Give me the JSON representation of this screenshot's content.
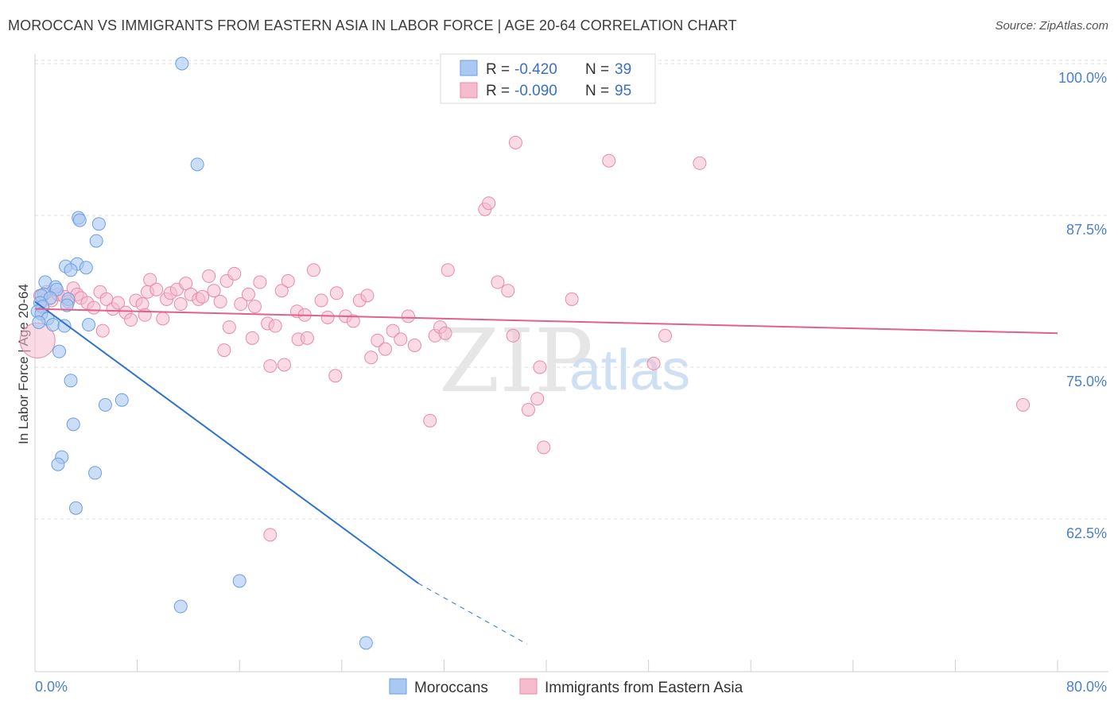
{
  "header": {
    "title": "MOROCCAN VS IMMIGRANTS FROM EASTERN ASIA IN LABOR FORCE | AGE 20-64 CORRELATION CHART",
    "source": "Source: ZipAtlas.com"
  },
  "watermark": {
    "zip": "ZIP",
    "atlas": "atlas"
  },
  "colors": {
    "blue_fill": "#a9c8f2",
    "blue_stroke": "#6e9ee0",
    "blue_line": "#2e72d2",
    "pink_fill": "#f6bccd",
    "pink_stroke": "#e88aa9",
    "pink_line": "#e0608e",
    "grid": "#dcdcdc",
    "axis_text": "#4a7fd0"
  },
  "legend": {
    "rows": [
      {
        "r_label": "R = ",
        "r_value": "-0.420",
        "n_label": "N = ",
        "n_value": "39"
      },
      {
        "r_label": "R = ",
        "r_value": "-0.090",
        "n_label": "N = ",
        "n_value": "95"
      }
    ]
  },
  "bottom_legend": {
    "series1": "Moroccans",
    "series2": "Immigrants from Eastern Asia"
  },
  "chart_data": {
    "type": "scatter",
    "title": "MOROCCAN VS IMMIGRANTS FROM EASTERN ASIA IN LABOR FORCE | AGE 20-64 CORRELATION CHART",
    "xlabel": "",
    "ylabel": "In Labor Force | Age 20-64",
    "xlim": [
      0,
      80
    ],
    "ylim": [
      52,
      101
    ],
    "x_tick_labels": {
      "min": "0.0%",
      "max": "80.0%"
    },
    "y_ticks": [
      {
        "value": 100,
        "label": "100.0%"
      },
      {
        "value": 87.5,
        "label": "87.5%"
      },
      {
        "value": 75,
        "label": "75.0%"
      },
      {
        "value": 62.5,
        "label": "62.5%"
      }
    ],
    "grid": true,
    "legend_position": "top-center",
    "series": [
      {
        "name": "Moroccans",
        "color": "#a9c8f2",
        "R": -0.42,
        "N": 39,
        "trend": {
          "x0": 0.0,
          "y0": 80.4,
          "x1": 30.0,
          "y1": 57.2,
          "dash_to_x": 38.5,
          "dash_to_y": 52.2
        },
        "points": [
          [
            11.5,
            100.0
          ],
          [
            12.7,
            91.7
          ],
          [
            3.4,
            87.3
          ],
          [
            3.5,
            87.1
          ],
          [
            5.0,
            86.8
          ],
          [
            4.8,
            85.4
          ],
          [
            2.4,
            83.3
          ],
          [
            3.3,
            83.5
          ],
          [
            4.0,
            83.2
          ],
          [
            2.8,
            83.0
          ],
          [
            0.8,
            82.0
          ],
          [
            1.6,
            81.6
          ],
          [
            1.7,
            81.4
          ],
          [
            0.7,
            81.0
          ],
          [
            0.5,
            80.9
          ],
          [
            1.2,
            80.7
          ],
          [
            2.6,
            80.6
          ],
          [
            0.4,
            80.3
          ],
          [
            0.6,
            80.0
          ],
          [
            2.5,
            80.1
          ],
          [
            0.2,
            79.6
          ],
          [
            0.5,
            79.4
          ],
          [
            1.0,
            79.0
          ],
          [
            0.3,
            78.7
          ],
          [
            1.4,
            78.5
          ],
          [
            2.3,
            78.4
          ],
          [
            4.2,
            78.5
          ],
          [
            1.9,
            76.3
          ],
          [
            2.8,
            73.9
          ],
          [
            6.8,
            72.3
          ],
          [
            5.5,
            71.9
          ],
          [
            3.0,
            70.3
          ],
          [
            2.1,
            67.6
          ],
          [
            1.8,
            67.0
          ],
          [
            4.7,
            66.3
          ],
          [
            3.2,
            63.4
          ],
          [
            16.0,
            57.4
          ],
          [
            11.4,
            55.3
          ],
          [
            25.9,
            52.3
          ]
        ]
      },
      {
        "name": "Immigrants from Eastern Asia",
        "color": "#f6bccd",
        "R": -0.09,
        "N": 95,
        "trend": {
          "x0": 0.0,
          "y0": 79.8,
          "x1": 80.0,
          "y1": 77.8
        },
        "points": [
          [
            0.2,
            77.2
          ],
          [
            0.4,
            80.9
          ],
          [
            0.6,
            79.9
          ],
          [
            0.9,
            81.2
          ],
          [
            1.3,
            80.5
          ],
          [
            1.8,
            81.0
          ],
          [
            2.3,
            80.8
          ],
          [
            2.6,
            80.4
          ],
          [
            3.0,
            81.5
          ],
          [
            3.3,
            81.0
          ],
          [
            3.6,
            80.7
          ],
          [
            4.1,
            80.3
          ],
          [
            4.6,
            79.9
          ],
          [
            5.1,
            81.2
          ],
          [
            5.6,
            80.6
          ],
          [
            5.3,
            78.0
          ],
          [
            6.1,
            79.8
          ],
          [
            6.5,
            80.3
          ],
          [
            7.1,
            79.5
          ],
          [
            7.5,
            78.9
          ],
          [
            7.9,
            80.5
          ],
          [
            8.4,
            80.2
          ],
          [
            8.6,
            79.3
          ],
          [
            8.8,
            81.2
          ],
          [
            9.0,
            82.2
          ],
          [
            9.5,
            81.4
          ],
          [
            10.0,
            79.0
          ],
          [
            10.3,
            80.6
          ],
          [
            10.6,
            81.1
          ],
          [
            11.1,
            81.4
          ],
          [
            11.4,
            80.2
          ],
          [
            11.8,
            81.9
          ],
          [
            12.2,
            81.0
          ],
          [
            12.8,
            80.6
          ],
          [
            13.1,
            80.8
          ],
          [
            13.6,
            82.5
          ],
          [
            14.0,
            81.3
          ],
          [
            14.5,
            80.4
          ],
          [
            15.0,
            82.1
          ],
          [
            15.6,
            82.7
          ],
          [
            16.1,
            80.2
          ],
          [
            16.7,
            81.0
          ],
          [
            17.2,
            80.0
          ],
          [
            17.6,
            82.0
          ],
          [
            15.2,
            78.3
          ],
          [
            17.0,
            77.4
          ],
          [
            18.2,
            78.6
          ],
          [
            18.8,
            78.4
          ],
          [
            19.3,
            81.3
          ],
          [
            19.8,
            82.1
          ],
          [
            20.5,
            79.6
          ],
          [
            21.1,
            79.3
          ],
          [
            21.8,
            83.0
          ],
          [
            22.4,
            80.5
          ],
          [
            22.9,
            79.1
          ],
          [
            23.6,
            81.1
          ],
          [
            24.3,
            79.2
          ],
          [
            24.9,
            78.8
          ],
          [
            25.4,
            80.5
          ],
          [
            26.0,
            80.9
          ],
          [
            26.8,
            77.2
          ],
          [
            27.4,
            76.5
          ],
          [
            28.0,
            78.0
          ],
          [
            28.6,
            77.3
          ],
          [
            29.2,
            79.2
          ],
          [
            29.7,
            76.8
          ],
          [
            14.8,
            76.4
          ],
          [
            18.4,
            75.1
          ],
          [
            19.5,
            75.2
          ],
          [
            20.6,
            77.3
          ],
          [
            21.3,
            77.4
          ],
          [
            23.5,
            74.3
          ],
          [
            26.3,
            75.8
          ],
          [
            32.3,
            83.0
          ],
          [
            31.3,
            77.6
          ],
          [
            31.7,
            78.3
          ],
          [
            32.1,
            77.8
          ],
          [
            35.2,
            88.0
          ],
          [
            35.5,
            88.5
          ],
          [
            37.0,
            81.3
          ],
          [
            37.4,
            77.6
          ],
          [
            37.6,
            93.5
          ],
          [
            36.2,
            82.0
          ],
          [
            42.0,
            80.6
          ],
          [
            44.9,
            92.0
          ],
          [
            48.4,
            75.3
          ],
          [
            49.3,
            77.6
          ],
          [
            52.0,
            91.8
          ],
          [
            30.9,
            70.6
          ],
          [
            38.6,
            71.5
          ],
          [
            39.3,
            72.4
          ],
          [
            39.8,
            68.4
          ],
          [
            18.4,
            61.2
          ],
          [
            77.3,
            71.9
          ],
          [
            39.5,
            75.0
          ]
        ]
      }
    ]
  }
}
